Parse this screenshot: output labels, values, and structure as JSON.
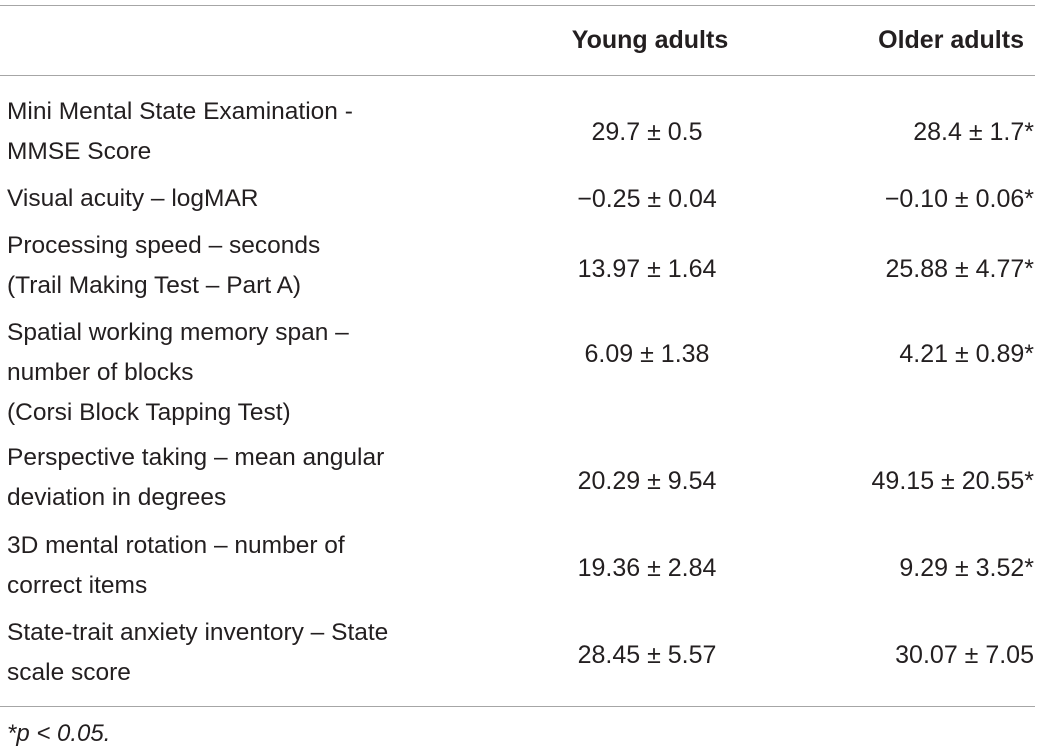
{
  "table": {
    "headers": {
      "measure": "",
      "young": "Young adults",
      "older": "Older adults"
    },
    "rows": [
      {
        "label_lines": [
          "Mini Mental State Examination -",
          "MMSE Score"
        ],
        "young": "29.7 ± 0.5",
        "older": "28.4 ± 1.7*"
      },
      {
        "label_lines": [
          "Visual acuity – logMAR"
        ],
        "young": "−0.25 ± 0.04",
        "older": "−0.10 ± 0.06*"
      },
      {
        "label_lines": [
          "Processing speed – seconds",
          "(Trail Making Test – Part A)"
        ],
        "young": "13.97 ± 1.64",
        "older": "25.88 ± 4.77*"
      },
      {
        "label_lines": [
          "Spatial working memory span –",
          "number of blocks",
          "(Corsi Block Tapping Test)"
        ],
        "young": "6.09 ± 1.38",
        "older": "4.21 ± 0.89*"
      },
      {
        "label_lines": [
          "Perspective taking – mean angular",
          "deviation in degrees"
        ],
        "young": "20.29 ± 9.54",
        "older": "49.15 ± 20.55*"
      },
      {
        "label_lines": [
          "3D mental rotation – number of",
          "correct items"
        ],
        "young": "19.36 ± 2.84",
        "older": "9.29 ± 3.52*"
      },
      {
        "label_lines": [
          "State-trait anxiety inventory – State",
          "scale score"
        ],
        "young": "28.45 ± 5.57",
        "older": "30.07 ± 7.05"
      }
    ],
    "footnote": "*p < 0.05."
  }
}
